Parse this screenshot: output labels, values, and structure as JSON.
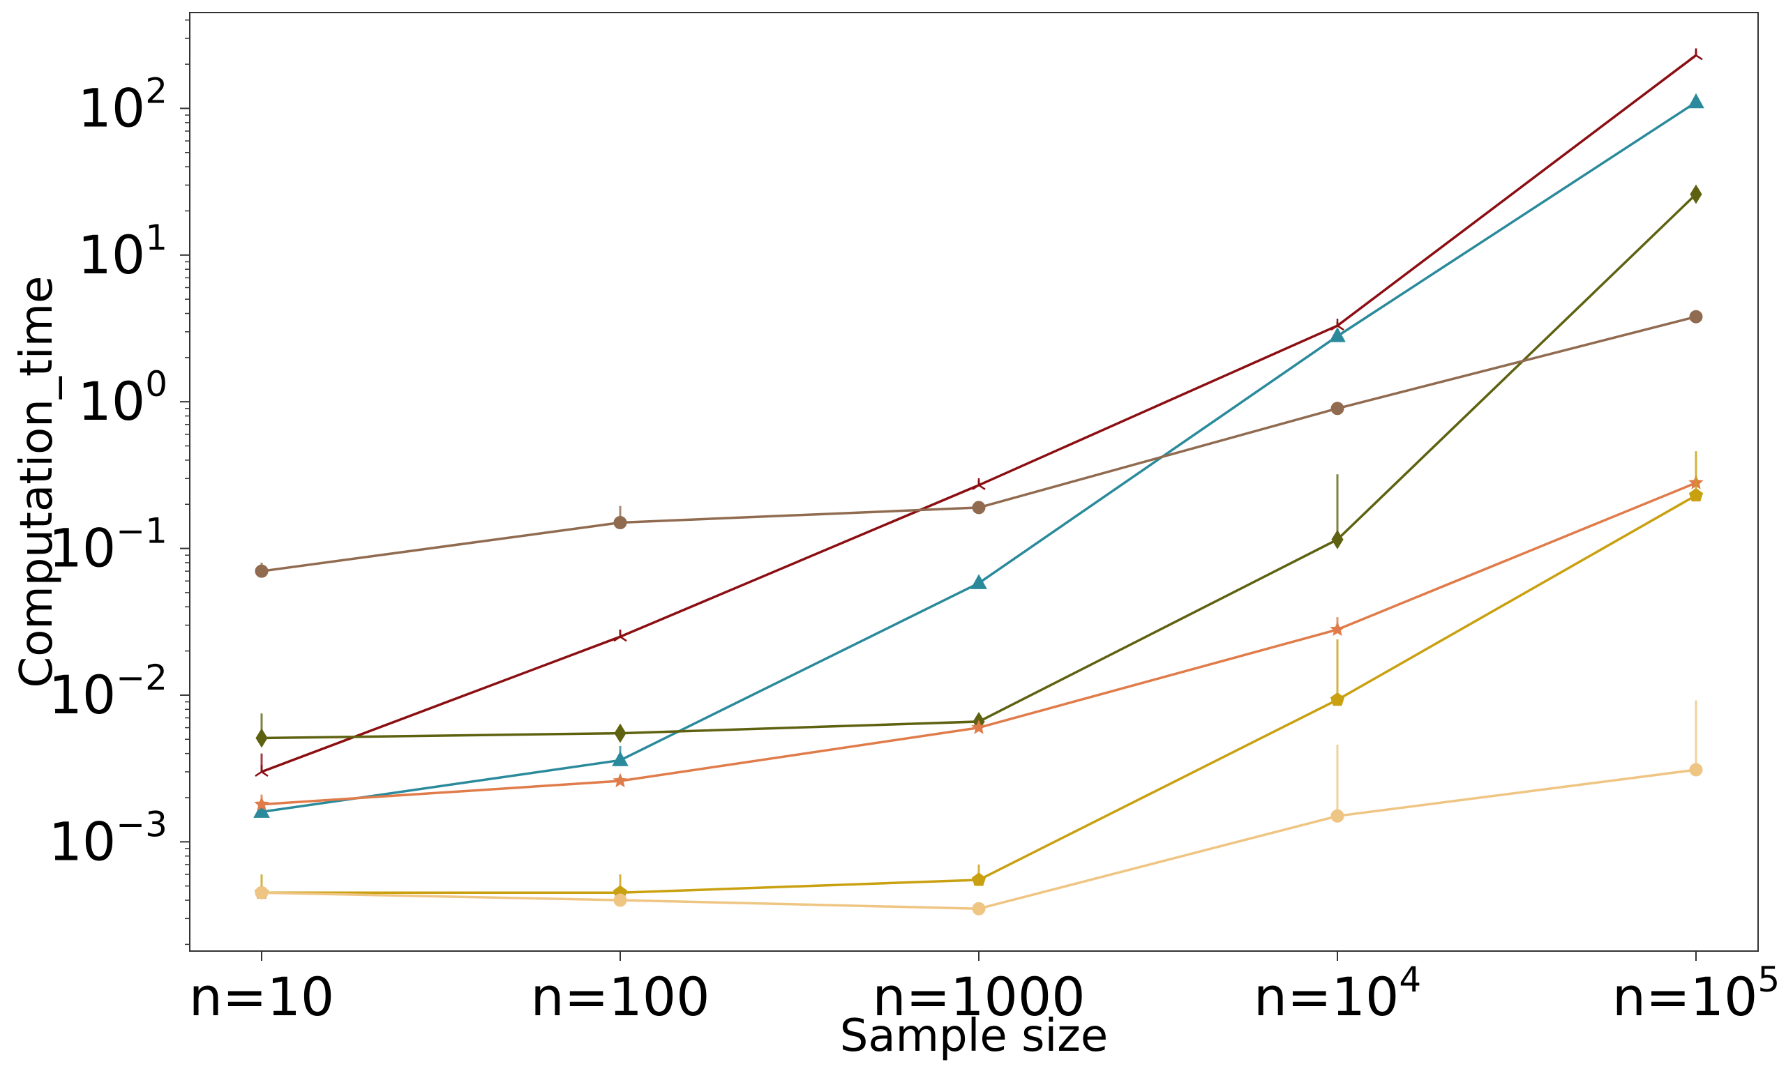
{
  "chart_data": {
    "type": "line",
    "title": "",
    "xlabel": "Sample size",
    "ylabel": "Computation_time",
    "y_scale": "log",
    "ylim": [
      0.00018,
      450
    ],
    "grid": false,
    "legend": "none",
    "categories": [
      "n=10",
      "n=100",
      "n=1000",
      "n=10^4",
      "n=10^5"
    ],
    "x_tick_labels": [
      {
        "base": "n=10",
        "exp": ""
      },
      {
        "base": "n=100",
        "exp": ""
      },
      {
        "base": "n=1000",
        "exp": ""
      },
      {
        "base": "n=10",
        "exp": "4"
      },
      {
        "base": "n=10",
        "exp": "5"
      }
    ],
    "y_ticks": [
      {
        "value": 0.001,
        "base": "10",
        "exp": "−3"
      },
      {
        "value": 0.01,
        "base": "10",
        "exp": "−2"
      },
      {
        "value": 0.1,
        "base": "10",
        "exp": "−1"
      },
      {
        "value": 1,
        "base": "10",
        "exp": "0"
      },
      {
        "value": 10,
        "base": "10",
        "exp": "1"
      },
      {
        "value": 100,
        "base": "10",
        "exp": "2"
      }
    ],
    "series": [
      {
        "color": "#8B0E12",
        "marker": "tri",
        "values": [
          0.003,
          0.025,
          0.27,
          3.3,
          230
        ],
        "err_upper": [
          0.004,
          0.028,
          0.29,
          3.5,
          250
        ]
      },
      {
        "color": "#2A8A9B",
        "marker": "triangle",
        "values": [
          0.0016,
          0.0036,
          0.058,
          2.8,
          110
        ],
        "err_upper": [
          0.0016,
          0.0045,
          0.065,
          3.0,
          115
        ]
      },
      {
        "color": "#5E6210",
        "marker": "diamond",
        "values": [
          0.0051,
          0.0055,
          0.0066,
          0.115,
          26
        ],
        "err_upper": [
          0.0075,
          0.0055,
          0.0072,
          0.32,
          28
        ]
      },
      {
        "color": "#906B50",
        "marker": "circle",
        "values": [
          0.07,
          0.15,
          0.19,
          0.9,
          3.8
        ],
        "err_upper": [
          0.08,
          0.195,
          0.2,
          0.92,
          3.9
        ]
      },
      {
        "color": "#E07B4A",
        "marker": "star",
        "values": [
          0.0018,
          0.0026,
          0.006,
          0.028,
          0.28
        ],
        "err_upper": [
          0.0021,
          0.0027,
          0.006,
          0.034,
          0.3
        ]
      },
      {
        "color": "#C9A010",
        "marker": "pentagon",
        "values": [
          0.00045,
          0.00045,
          0.00055,
          0.0093,
          0.23
        ],
        "err_upper": [
          0.0006,
          0.0006,
          0.0007,
          0.024,
          0.46
        ]
      },
      {
        "color": "#EFC583",
        "marker": "circle",
        "values": [
          0.00045,
          0.0004,
          0.00035,
          0.0015,
          0.0031
        ],
        "err_upper": [
          0.00045,
          0.0004,
          0.00035,
          0.0046,
          0.0092
        ]
      }
    ]
  }
}
